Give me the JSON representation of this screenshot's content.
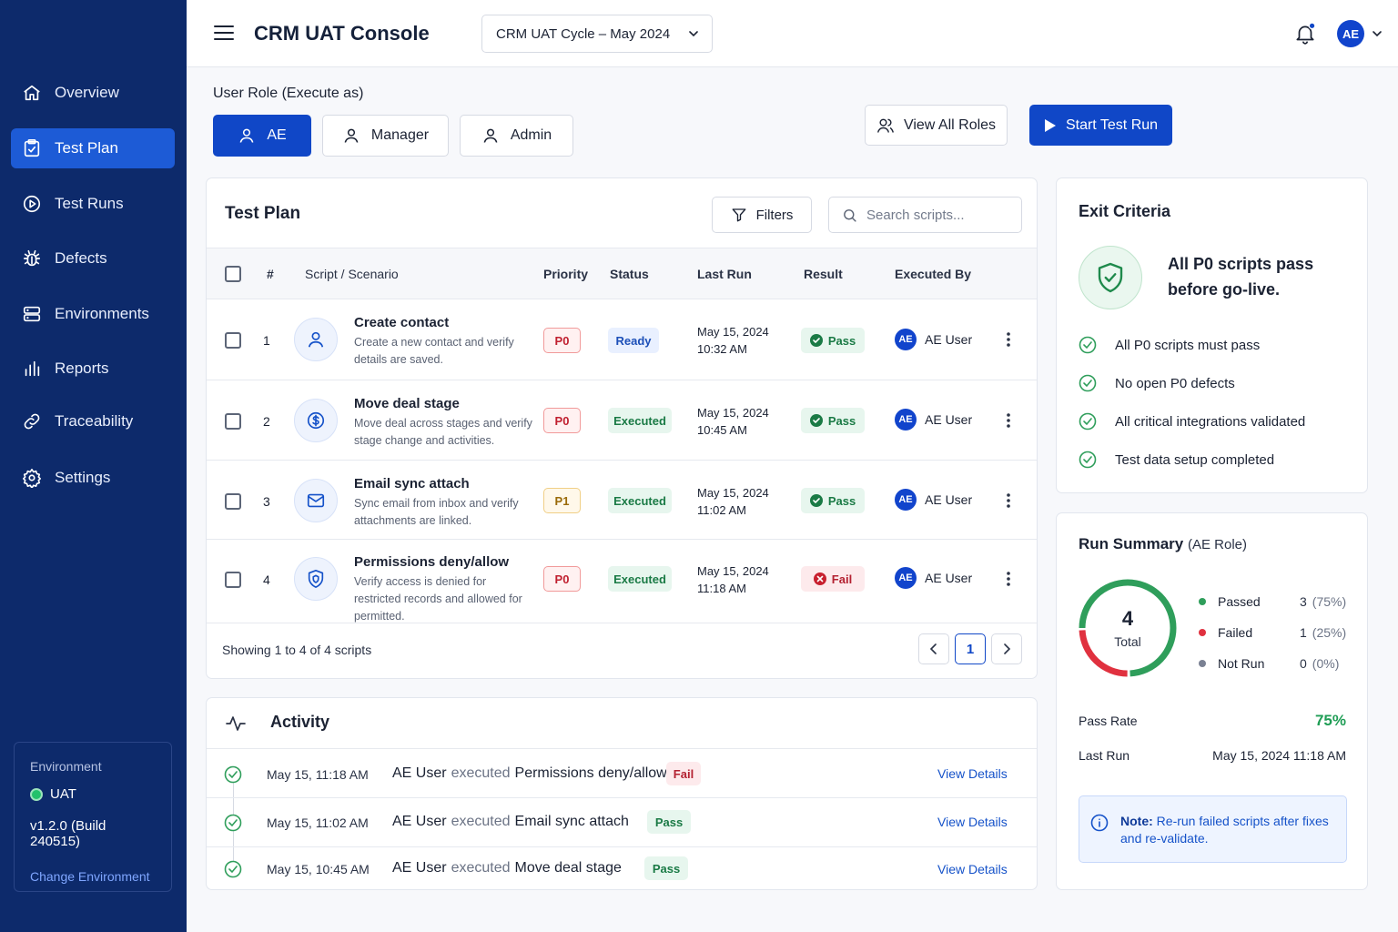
{
  "header": {
    "title": "CRM UAT Console",
    "cycle": "CRM UAT Cycle – May 2024",
    "avatar": "AE"
  },
  "sidebar": {
    "items": [
      {
        "label": "Overview",
        "icon": "home-icon"
      },
      {
        "label": "Test Plan",
        "icon": "clipboard-icon"
      },
      {
        "label": "Test Runs",
        "icon": "play-circle-icon"
      },
      {
        "label": "Defects",
        "icon": "bug-icon"
      },
      {
        "label": "Environments",
        "icon": "server-icon"
      },
      {
        "label": "Reports",
        "icon": "bar-chart-icon"
      },
      {
        "label": "Traceability",
        "icon": "link-icon"
      },
      {
        "label": "Settings",
        "icon": "gear-icon"
      }
    ],
    "active": "Test Plan",
    "environment": {
      "label": "Environment",
      "name": "UAT",
      "build": "v1.2.0 (Build 240515)",
      "change": "Change Environment"
    }
  },
  "roles": {
    "label": "User Role (Execute as)",
    "options": [
      "AE",
      "Manager",
      "Admin"
    ],
    "selected": "AE",
    "view_all": "View All Roles",
    "start": "Start Test Run"
  },
  "plan": {
    "title": "Test Plan",
    "filters": "Filters",
    "search_placeholder": "Search scripts...",
    "columns": [
      "#",
      "Script / Scenario",
      "Priority",
      "Status",
      "Last Run",
      "Result",
      "Executed By"
    ],
    "rows": [
      {
        "num": "1",
        "title": "Create contact",
        "desc": "Create a new contact and verify details are saved.",
        "priority": "P0",
        "status": "Ready",
        "date": "May 15, 2024",
        "time": "10:32 AM",
        "result": "Pass",
        "initials": "AE",
        "user": "AE User",
        "icon": "user-icon"
      },
      {
        "num": "2",
        "title": "Move deal stage",
        "desc": "Move deal across stages and verify stage change and activities.",
        "priority": "P0",
        "status": "Executed",
        "date": "May 15, 2024",
        "time": "10:45 AM",
        "result": "Pass",
        "initials": "AE",
        "user": "AE User",
        "icon": "dollar-icon"
      },
      {
        "num": "3",
        "title": "Email sync attach",
        "desc": "Sync email from inbox and verify attachments are linked.",
        "priority": "P1",
        "status": "Executed",
        "date": "May 15, 2024",
        "time": "11:02 AM",
        "result": "Pass",
        "initials": "AE",
        "user": "AE User",
        "icon": "mail-icon"
      },
      {
        "num": "4",
        "title": "Permissions deny/allow",
        "desc": "Verify access is denied for restricted records and allowed for permitted.",
        "priority": "P0",
        "status": "Executed",
        "date": "May 15, 2024",
        "time": "11:18 AM",
        "result": "Fail",
        "initials": "AE",
        "user": "AE User",
        "icon": "shield-icon"
      }
    ],
    "showing": "Showing 1 to 4 of 4 scripts",
    "page": "1"
  },
  "activity": {
    "title": "Activity",
    "items": [
      {
        "time": "May 15, 11:18 AM",
        "actor": "AE User",
        "verb": "executed",
        "script": "Permissions deny/allow",
        "result": "Fail",
        "link": "View Details"
      },
      {
        "time": "May 15, 11:02 AM",
        "actor": "AE User",
        "verb": "executed",
        "script": "Email sync attach",
        "result": "Pass",
        "link": "View Details"
      },
      {
        "time": "May 15, 10:45 AM",
        "actor": "AE User",
        "verb": "executed",
        "script": "Move deal stage",
        "result": "Pass",
        "link": "View Details"
      }
    ]
  },
  "exit": {
    "title": "Exit Criteria",
    "headline": "All P0 scripts pass before go-live.",
    "criteria": [
      "All P0 scripts must pass",
      "No open P0 defects",
      "All critical integrations validated",
      "Test data setup completed"
    ]
  },
  "summary": {
    "title": "Run Summary",
    "role": "(AE Role)",
    "total": "4",
    "total_label": "Total",
    "legend": [
      {
        "name": "Passed",
        "count": "3",
        "pct": "(75%)",
        "value": 3,
        "color": "#2f9e5b"
      },
      {
        "name": "Failed",
        "count": "1",
        "pct": "(25%)",
        "value": 1,
        "color": "#e0313f"
      },
      {
        "name": "Not Run",
        "count": "0",
        "pct": "(0%)",
        "value": 0,
        "color": "#7a8193"
      }
    ],
    "pass_rate_label": "Pass Rate",
    "pass_rate": "75%",
    "last_run_label": "Last Run",
    "last_run": "May 15, 2024 11:18 AM",
    "note_label": "Note:",
    "note": "Re-run failed scripts after fixes and re-validate."
  }
}
